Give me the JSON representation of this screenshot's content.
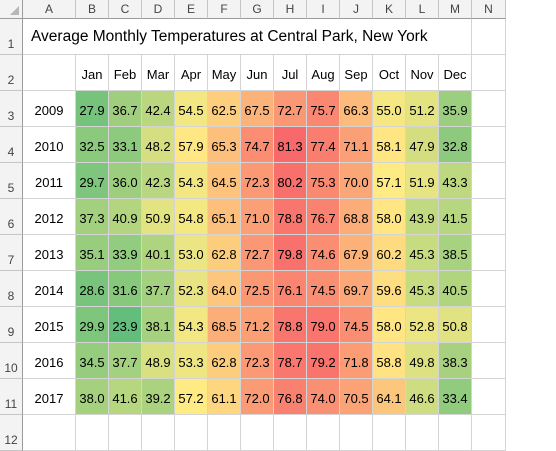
{
  "columns": [
    "A",
    "B",
    "C",
    "D",
    "E",
    "F",
    "G",
    "H",
    "I",
    "J",
    "K",
    "L",
    "M",
    "N"
  ],
  "rows": [
    "1",
    "2",
    "3",
    "4",
    "5",
    "6",
    "7",
    "8",
    "9",
    "10",
    "11",
    "12"
  ],
  "title": "Average Monthly Temperatures at Central Park, New York",
  "months": [
    "Jan",
    "Feb",
    "Mar",
    "Apr",
    "May",
    "Jun",
    "Jul",
    "Aug",
    "Sep",
    "Oct",
    "Nov",
    "Dec"
  ],
  "years": [
    "2009",
    "2010",
    "2011",
    "2012",
    "2013",
    "2014",
    "2015",
    "2016",
    "2017"
  ],
  "values": [
    [
      "27.9",
      "36.7",
      "42.4",
      "54.5",
      "62.5",
      "67.5",
      "72.7",
      "75.7",
      "66.3",
      "55.0",
      "51.2",
      "35.9"
    ],
    [
      "32.5",
      "33.1",
      "48.2",
      "57.9",
      "65.3",
      "74.7",
      "81.3",
      "77.4",
      "71.1",
      "58.1",
      "47.9",
      "32.8"
    ],
    [
      "29.7",
      "36.0",
      "42.3",
      "54.3",
      "64.5",
      "72.3",
      "80.2",
      "75.3",
      "70.0",
      "57.1",
      "51.9",
      "43.3"
    ],
    [
      "37.3",
      "40.9",
      "50.9",
      "54.8",
      "65.1",
      "71.0",
      "78.8",
      "76.7",
      "68.8",
      "58.0",
      "43.9",
      "41.5"
    ],
    [
      "35.1",
      "33.9",
      "40.1",
      "53.0",
      "62.8",
      "72.7",
      "79.8",
      "74.6",
      "67.9",
      "60.2",
      "45.3",
      "38.5"
    ],
    [
      "28.6",
      "31.6",
      "37.7",
      "52.3",
      "64.0",
      "72.5",
      "76.1",
      "74.5",
      "69.7",
      "59.6",
      "45.3",
      "40.5"
    ],
    [
      "29.9",
      "23.9",
      "38.1",
      "54.3",
      "68.5",
      "71.2",
      "78.8",
      "79.0",
      "74.5",
      "58.0",
      "52.8",
      "50.8"
    ],
    [
      "34.5",
      "37.7",
      "48.9",
      "53.3",
      "62.8",
      "72.3",
      "78.7",
      "79.2",
      "71.8",
      "58.8",
      "49.8",
      "38.3"
    ],
    [
      "38.0",
      "41.6",
      "39.2",
      "57.2",
      "61.1",
      "72.0",
      "76.8",
      "74.0",
      "70.5",
      "64.1",
      "46.6",
      "33.4"
    ]
  ],
  "color_scale": {
    "low": "#63be7b",
    "mid": "#ffeb84",
    "high": "#f8696b"
  }
}
